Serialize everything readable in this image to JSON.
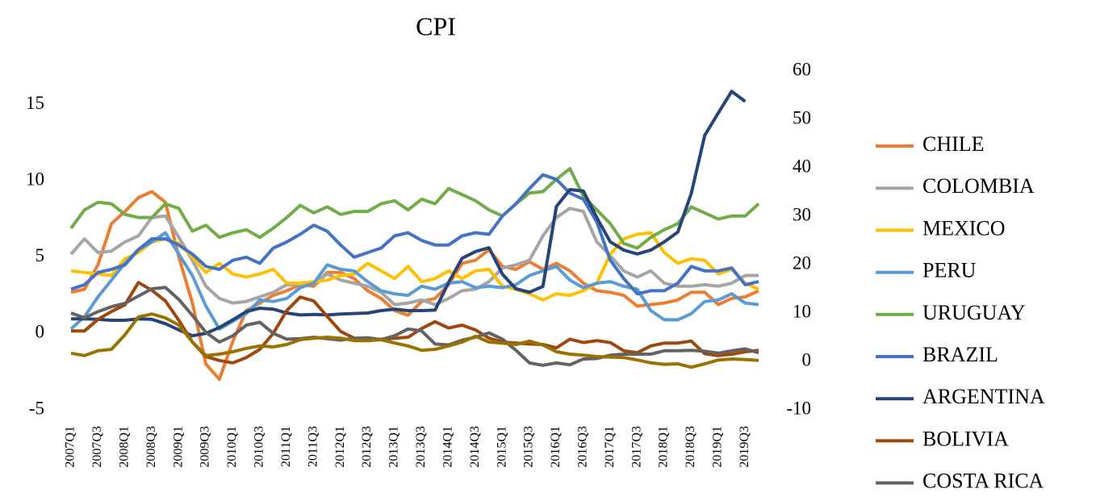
{
  "chart_data": {
    "type": "line",
    "title": "CPI",
    "categories": [
      "2007Q1",
      null,
      "2007Q3",
      null,
      "2008Q1",
      null,
      "2008Q3",
      null,
      "2009Q1",
      null,
      "2009Q3",
      null,
      "2010Q1",
      null,
      "2010Q3",
      null,
      "2011Q1",
      null,
      "2011Q3",
      null,
      "2012Q1",
      null,
      "2012Q3",
      null,
      "2013Q1",
      null,
      "2013Q3",
      null,
      "2014Q1",
      null,
      "2014Q3",
      null,
      "2015Q1",
      null,
      "2015Q3",
      null,
      "2016Q1",
      null,
      "2016Q3",
      null,
      "2017Q1",
      null,
      "2017Q3",
      null,
      "2018Q1",
      null,
      "2018Q3",
      null,
      "2019Q1",
      null,
      "2019Q3",
      null
    ],
    "ylim": [
      -5,
      17.2
    ],
    "yticks": [
      -5,
      0,
      5,
      10,
      15
    ],
    "y2lim": [
      -10,
      60
    ],
    "y2ticks": [
      -10,
      0,
      10,
      20,
      30,
      40,
      50,
      60
    ],
    "grid": false,
    "legend": "right",
    "series": [
      {
        "name": "CHILE",
        "color": "#ed7d31",
        "values": [
          2.7,
          2.9,
          4.5,
          7.2,
          8.0,
          8.9,
          9.3,
          8.6,
          5.0,
          2.0,
          -2.0,
          -3.0,
          -0.5,
          1.5,
          2.0,
          2.5,
          2.8,
          3.2,
          3.1,
          4.0,
          4.0,
          3.6,
          2.8,
          2.3,
          1.5,
          1.2,
          2.1,
          2.3,
          3.2,
          4.6,
          4.8,
          5.5,
          4.4,
          4.2,
          4.7,
          4.2,
          4.6,
          4.1,
          3.3,
          2.8,
          2.7,
          2.5,
          1.8,
          1.9,
          2.0,
          2.2,
          2.7,
          2.7,
          1.9,
          2.3,
          2.4,
          2.8
        ]
      },
      {
        "name": "COLOMBIA",
        "color": "#a5a5a5",
        "values": [
          5.2,
          6.2,
          5.3,
          5.4,
          6.0,
          6.4,
          7.6,
          7.7,
          6.3,
          4.8,
          3.1,
          2.3,
          2.0,
          2.1,
          2.4,
          2.7,
          3.2,
          3.2,
          3.3,
          3.9,
          3.5,
          3.3,
          3.1,
          2.7,
          1.9,
          2.0,
          2.2,
          1.9,
          2.3,
          2.8,
          2.9,
          3.4,
          4.3,
          4.5,
          4.8,
          6.4,
          7.6,
          8.2,
          8.0,
          6.0,
          5.1,
          4.1,
          3.7,
          4.1,
          3.3,
          3.1,
          3.1,
          3.2,
          3.1,
          3.3,
          3.8,
          3.8
        ]
      },
      {
        "name": "MEXICO",
        "color": "#ffc000",
        "values": [
          4.1,
          4.0,
          3.9,
          3.8,
          4.9,
          5.3,
          6.0,
          6.2,
          5.9,
          5.0,
          4.0,
          4.6,
          3.9,
          3.7,
          3.9,
          4.2,
          3.3,
          3.3,
          3.4,
          3.5,
          3.8,
          3.9,
          4.6,
          4.1,
          3.6,
          4.4,
          3.4,
          3.6,
          4.1,
          3.6,
          4.1,
          4.2,
          3.1,
          2.9,
          2.6,
          2.2,
          2.6,
          2.5,
          2.8,
          3.3,
          5.2,
          6.2,
          6.5,
          6.6,
          5.3,
          4.6,
          4.9,
          4.8,
          3.9,
          4.2,
          3.3,
          2.9
        ]
      },
      {
        "name": "PERU",
        "color": "#5b9bd5",
        "values": [
          0.3,
          1.1,
          2.4,
          3.5,
          4.6,
          5.5,
          6.0,
          6.6,
          5.2,
          3.8,
          1.8,
          0.3,
          0.8,
          1.3,
          2.2,
          2.1,
          2.3,
          3.0,
          3.3,
          4.5,
          4.2,
          4.1,
          3.4,
          2.8,
          2.6,
          2.5,
          3.1,
          2.9,
          3.3,
          3.4,
          3.0,
          3.1,
          3.0,
          3.2,
          3.8,
          4.1,
          4.4,
          3.5,
          3.0,
          3.3,
          3.4,
          3.1,
          2.9,
          1.5,
          0.9,
          0.9,
          1.3,
          2.1,
          2.2,
          2.6,
          2.0,
          1.9
        ]
      },
      {
        "name": "URUGUAY",
        "color": "#70ad47",
        "values": [
          6.9,
          8.1,
          8.6,
          8.5,
          7.8,
          7.6,
          7.6,
          8.5,
          8.2,
          6.7,
          7.1,
          6.3,
          6.6,
          6.8,
          6.3,
          6.9,
          7.6,
          8.4,
          7.9,
          8.3,
          7.8,
          8.0,
          8.0,
          8.5,
          8.7,
          8.1,
          8.8,
          8.5,
          9.5,
          9.1,
          8.7,
          8.1,
          7.7,
          8.5,
          9.2,
          9.3,
          10.1,
          10.8,
          9.0,
          8.1,
          7.2,
          5.9,
          5.6,
          6.3,
          6.8,
          7.2,
          8.3,
          7.9,
          7.5,
          7.7,
          7.7,
          8.5
        ]
      },
      {
        "name": "BRAZIL",
        "color": "#4472c4",
        "values": [
          2.9,
          3.2,
          4.0,
          4.2,
          4.5,
          5.5,
          6.2,
          6.2,
          5.8,
          5.2,
          4.4,
          4.2,
          4.8,
          5.0,
          4.6,
          5.6,
          6.0,
          6.5,
          7.1,
          6.7,
          5.8,
          5.0,
          5.3,
          5.6,
          6.4,
          6.6,
          6.1,
          5.8,
          5.8,
          6.4,
          6.6,
          6.5,
          7.7,
          8.5,
          9.5,
          10.4,
          10.1,
          9.2,
          8.8,
          7.3,
          4.8,
          3.6,
          2.6,
          2.8,
          2.8,
          3.3,
          4.4,
          4.1,
          4.1,
          4.3,
          3.2,
          3.4
        ]
      },
      {
        "name": "ARGENTINA",
        "color": "#264478",
        "axis": "y2",
        "values": [
          8.8,
          8.8,
          8.7,
          8.5,
          8.5,
          8.8,
          8.7,
          7.8,
          6.5,
          5.3,
          5.8,
          7.0,
          8.6,
          10.3,
          11.0,
          10.8,
          10.0,
          9.6,
          9.7,
          9.6,
          9.8,
          9.9,
          10.0,
          10.5,
          10.8,
          10.5,
          10.5,
          10.6,
          16.3,
          21.3,
          22.7,
          23.5,
          18.0,
          15.0,
          14.3,
          15.5,
          32.0,
          35.5,
          35.2,
          29.7,
          24.7,
          23.0,
          22.2,
          23.0,
          24.7,
          26.7,
          34.7,
          46.7,
          51.3,
          55.8,
          53.7,
          null
        ]
      },
      {
        "name": "BOLIVIA",
        "color": "#9e480e",
        "axis": "y2",
        "values": [
          6.3,
          6.3,
          8.7,
          10.3,
          11.7,
          16.3,
          14.7,
          12.5,
          8.5,
          4.0,
          1.0,
          0.2,
          -0.3,
          0.8,
          2.5,
          5.8,
          10.5,
          13.3,
          12.5,
          9.3,
          6.2,
          4.8,
          4.3,
          4.6,
          4.8,
          5.0,
          6.8,
          8.2,
          6.9,
          7.5,
          6.5,
          4.8,
          4.0,
          3.8,
          3.6,
          3.5,
          2.8,
          4.6,
          3.9,
          4.3,
          3.9,
          2.2,
          1.8,
          3.2,
          3.8,
          3.8,
          4.2,
          1.6,
          1.2,
          1.5,
          2.0,
          2.3
        ]
      },
      {
        "name": "COSTA RICA",
        "color": "#636363",
        "axis": "y2",
        "values": [
          10.0,
          9.0,
          10.3,
          11.3,
          12.0,
          13.5,
          15.0,
          15.3,
          12.8,
          9.5,
          6.0,
          4.0,
          5.3,
          7.5,
          8.1,
          5.8,
          4.6,
          4.7,
          5.0,
          4.7,
          4.4,
          4.8,
          4.9,
          4.5,
          5.3,
          6.7,
          6.3,
          3.6,
          3.4,
          4.4,
          5.0,
          5.9,
          4.6,
          2.3,
          -0.3,
          -0.8,
          -0.3,
          -0.7,
          0.5,
          0.6,
          1.3,
          1.5,
          1.5,
          1.5,
          2.2,
          2.2,
          2.3,
          2.1,
          1.7,
          2.2,
          2.6,
          1.8
        ]
      },
      {
        "color": "#997300",
        "axis": "y2",
        "values": [
          1.7,
          1.2,
          2.2,
          2.5,
          5.5,
          9.2,
          9.8,
          9.0,
          7.5,
          4.0,
          1.2,
          1.5,
          2.0,
          2.7,
          3.2,
          3.0,
          3.5,
          4.5,
          4.8,
          5.0,
          4.8,
          4.3,
          4.3,
          4.5,
          3.8,
          3.2,
          2.3,
          2.5,
          3.2,
          4.0,
          5.2,
          4.0,
          3.8,
          3.5,
          4.2,
          3.4,
          2.0,
          1.5,
          1.3,
          1.0,
          0.9,
          0.8,
          0.3,
          -0.3,
          -0.6,
          -0.5,
          -1.2,
          -0.5,
          0.3,
          0.5,
          0.4,
          0.2
        ]
      }
    ]
  }
}
